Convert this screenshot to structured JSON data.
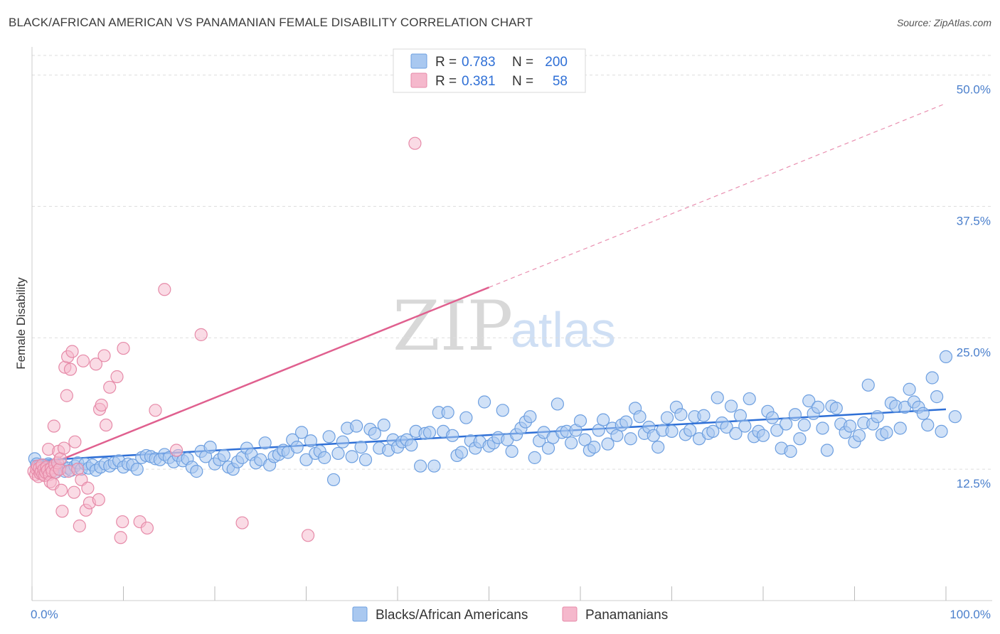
{
  "title": "BLACK/AFRICAN AMERICAN VS PANAMANIAN FEMALE DISABILITY CORRELATION CHART",
  "source": "Source: ZipAtlas.com",
  "watermark": {
    "zip": "ZIP",
    "atlas": "atlas"
  },
  "legend": {
    "r_label": "R =",
    "n_label": "N =",
    "rows": [
      {
        "r": "0.783",
        "n": "200",
        "color": "#a9c8f0"
      },
      {
        "r": "0.381",
        "n": "58",
        "color": "#f5b8cc"
      }
    ]
  },
  "colors": {
    "blue_fill": "#a9c8f0",
    "blue_stroke": "#6d9fe0",
    "blue_line": "#2e6fd6",
    "pink_fill": "#f5b8cc",
    "pink_stroke": "#e68aa8",
    "pink_line": "#e0608f"
  },
  "chart_data": {
    "type": "scatter",
    "title": "BLACK/AFRICAN AMERICAN VS PANAMANIAN FEMALE DISABILITY CORRELATION CHART",
    "xlabel": "",
    "ylabel": "Female Disability",
    "xlim": [
      0,
      100
    ],
    "ylim": [
      0,
      52
    ],
    "x_tick_labels": [
      "0.0%",
      "100.0%"
    ],
    "y_ticks": [
      12.5,
      25.0,
      37.5,
      50.0
    ],
    "y_tick_labels": [
      "12.5%",
      "25.0%",
      "37.5%",
      "50.0%"
    ],
    "grid": true,
    "legend_position": "top-center",
    "series": [
      {
        "name": "Blacks/African Americans",
        "r": 0.783,
        "n": 200,
        "trend": {
          "x": [
            0,
            100
          ],
          "y": [
            13.3,
            18.2
          ],
          "dashed_extension": false
        },
        "points": [
          [
            0.3,
            13.5
          ],
          [
            0.5,
            13.0
          ],
          [
            0.8,
            12.8
          ],
          [
            1.0,
            12.5
          ],
          [
            1.2,
            12.9
          ],
          [
            1.5,
            12.6
          ],
          [
            1.8,
            13.0
          ],
          [
            2.0,
            12.4
          ],
          [
            2.2,
            12.8
          ],
          [
            2.5,
            12.2
          ],
          [
            2.8,
            12.7
          ],
          [
            3.0,
            12.5
          ],
          [
            3.3,
            12.9
          ],
          [
            3.6,
            12.3
          ],
          [
            4.0,
            12.6
          ],
          [
            4.3,
            12.4
          ],
          [
            4.7,
            12.8
          ],
          [
            5.0,
            13.1
          ],
          [
            5.4,
            12.5
          ],
          [
            5.8,
            13.0
          ],
          [
            6.2,
            12.6
          ],
          [
            6.6,
            12.9
          ],
          [
            7.0,
            12.4
          ],
          [
            7.5,
            12.7
          ],
          [
            8.0,
            13.0
          ],
          [
            8.5,
            12.8
          ],
          [
            9.0,
            13.1
          ],
          [
            9.5,
            13.3
          ],
          [
            10.0,
            12.7
          ],
          [
            10.5,
            13.0
          ],
          [
            11.0,
            12.9
          ],
          [
            11.5,
            12.5
          ],
          [
            12.0,
            13.6
          ],
          [
            12.5,
            13.8
          ],
          [
            13.0,
            13.7
          ],
          [
            13.5,
            13.5
          ],
          [
            14.0,
            13.4
          ],
          [
            14.5,
            13.9
          ],
          [
            15.0,
            13.6
          ],
          [
            15.5,
            13.2
          ],
          [
            16.0,
            13.8
          ],
          [
            16.5,
            13.3
          ],
          [
            17.0,
            13.5
          ],
          [
            17.5,
            12.7
          ],
          [
            18.0,
            12.3
          ],
          [
            18.5,
            14.2
          ],
          [
            19.0,
            13.7
          ],
          [
            19.5,
            14.6
          ],
          [
            20.0,
            13.0
          ],
          [
            20.5,
            13.4
          ],
          [
            21.0,
            13.8
          ],
          [
            21.5,
            12.7
          ],
          [
            22.0,
            12.5
          ],
          [
            22.5,
            13.2
          ],
          [
            23.0,
            13.6
          ],
          [
            23.5,
            14.5
          ],
          [
            24.0,
            13.9
          ],
          [
            24.5,
            13.1
          ],
          [
            25.0,
            13.4
          ],
          [
            25.5,
            15.0
          ],
          [
            26.0,
            12.9
          ],
          [
            26.5,
            13.7
          ],
          [
            27.0,
            13.9
          ],
          [
            27.5,
            14.3
          ],
          [
            28.0,
            14.1
          ],
          [
            28.5,
            15.3
          ],
          [
            29.0,
            14.6
          ],
          [
            29.5,
            16.0
          ],
          [
            30.0,
            13.4
          ],
          [
            30.5,
            15.2
          ],
          [
            31.0,
            14.0
          ],
          [
            31.5,
            14.2
          ],
          [
            32.0,
            13.6
          ],
          [
            32.5,
            15.6
          ],
          [
            33.0,
            11.5
          ],
          [
            33.5,
            14.0
          ],
          [
            34.0,
            15.1
          ],
          [
            34.5,
            16.4
          ],
          [
            35.0,
            13.7
          ],
          [
            35.5,
            16.6
          ],
          [
            36.0,
            14.6
          ],
          [
            36.5,
            13.4
          ],
          [
            37.0,
            16.3
          ],
          [
            37.5,
            15.9
          ],
          [
            38.0,
            14.5
          ],
          [
            38.5,
            16.7
          ],
          [
            39.0,
            14.3
          ],
          [
            39.5,
            15.3
          ],
          [
            40.0,
            14.6
          ],
          [
            40.5,
            15.1
          ],
          [
            41.0,
            15.3
          ],
          [
            41.5,
            14.8
          ],
          [
            42.0,
            16.1
          ],
          [
            42.5,
            12.8
          ],
          [
            43.0,
            15.9
          ],
          [
            43.5,
            16.0
          ],
          [
            44.0,
            12.8
          ],
          [
            44.5,
            17.9
          ],
          [
            45.0,
            16.1
          ],
          [
            45.5,
            17.9
          ],
          [
            46.0,
            15.7
          ],
          [
            46.5,
            13.8
          ],
          [
            47.0,
            14.1
          ],
          [
            47.5,
            17.4
          ],
          [
            48.0,
            15.2
          ],
          [
            48.5,
            14.5
          ],
          [
            49.0,
            15.1
          ],
          [
            49.5,
            18.9
          ],
          [
            50.0,
            14.7
          ],
          [
            50.5,
            15.0
          ],
          [
            51.0,
            15.5
          ],
          [
            51.5,
            18.1
          ],
          [
            52.0,
            15.3
          ],
          [
            52.5,
            14.2
          ],
          [
            53.0,
            15.8
          ],
          [
            53.5,
            16.4
          ],
          [
            54.0,
            17.0
          ],
          [
            54.5,
            17.5
          ],
          [
            55.0,
            13.6
          ],
          [
            55.5,
            15.2
          ],
          [
            56.0,
            16.0
          ],
          [
            56.5,
            14.5
          ],
          [
            57.0,
            15.5
          ],
          [
            57.5,
            18.7
          ],
          [
            58.0,
            16.0
          ],
          [
            58.5,
            16.1
          ],
          [
            59.0,
            15.0
          ],
          [
            59.5,
            16.2
          ],
          [
            60.0,
            17.1
          ],
          [
            60.5,
            15.3
          ],
          [
            61.0,
            14.3
          ],
          [
            61.5,
            14.6
          ],
          [
            62.0,
            16.2
          ],
          [
            62.5,
            17.2
          ],
          [
            63.0,
            14.9
          ],
          [
            63.5,
            16.4
          ],
          [
            64.0,
            15.7
          ],
          [
            64.5,
            16.7
          ],
          [
            65.0,
            17.0
          ],
          [
            65.5,
            15.4
          ],
          [
            66.0,
            18.3
          ],
          [
            66.5,
            17.5
          ],
          [
            67.0,
            15.9
          ],
          [
            67.5,
            16.5
          ],
          [
            68.0,
            15.7
          ],
          [
            68.5,
            14.6
          ],
          [
            69.0,
            16.2
          ],
          [
            69.5,
            17.4
          ],
          [
            70.0,
            16.1
          ],
          [
            70.5,
            18.4
          ],
          [
            71.0,
            17.7
          ],
          [
            71.5,
            15.8
          ],
          [
            72.0,
            16.2
          ],
          [
            72.5,
            17.5
          ],
          [
            73.0,
            15.4
          ],
          [
            73.5,
            17.6
          ],
          [
            74.0,
            15.9
          ],
          [
            74.5,
            16.1
          ],
          [
            75.0,
            19.3
          ],
          [
            75.5,
            16.9
          ],
          [
            76.0,
            16.5
          ],
          [
            76.5,
            18.5
          ],
          [
            77.0,
            15.9
          ],
          [
            77.5,
            17.6
          ],
          [
            78.0,
            16.6
          ],
          [
            78.5,
            19.2
          ],
          [
            79.0,
            15.6
          ],
          [
            79.5,
            16.1
          ],
          [
            80.0,
            15.7
          ],
          [
            80.5,
            18.0
          ],
          [
            81.0,
            17.4
          ],
          [
            81.5,
            16.2
          ],
          [
            82.0,
            14.5
          ],
          [
            82.5,
            16.8
          ],
          [
            83.0,
            14.2
          ],
          [
            83.5,
            17.7
          ],
          [
            84.0,
            15.4
          ],
          [
            84.5,
            16.7
          ],
          [
            85.0,
            19.0
          ],
          [
            85.5,
            17.8
          ],
          [
            86.0,
            18.4
          ],
          [
            86.5,
            16.4
          ],
          [
            87.0,
            14.3
          ],
          [
            87.5,
            18.5
          ],
          [
            88.0,
            18.3
          ],
          [
            88.5,
            16.8
          ],
          [
            89.0,
            16.0
          ],
          [
            89.5,
            16.6
          ],
          [
            90.0,
            15.1
          ],
          [
            90.5,
            15.7
          ],
          [
            91.0,
            16.9
          ],
          [
            91.5,
            20.5
          ],
          [
            92.0,
            16.8
          ],
          [
            92.5,
            17.5
          ],
          [
            93.0,
            15.8
          ],
          [
            93.5,
            16.0
          ],
          [
            94.0,
            18.8
          ],
          [
            94.5,
            18.5
          ],
          [
            95.0,
            16.4
          ],
          [
            95.5,
            18.4
          ],
          [
            96.0,
            20.1
          ],
          [
            96.5,
            18.9
          ],
          [
            97.0,
            18.4
          ],
          [
            97.5,
            17.8
          ],
          [
            98.0,
            16.7
          ],
          [
            98.5,
            21.2
          ],
          [
            99.0,
            19.4
          ],
          [
            99.5,
            16.1
          ],
          [
            100.0,
            23.2
          ],
          [
            101.0,
            17.5
          ]
        ]
      },
      {
        "name": "Panamanians",
        "r": 0.381,
        "n": 58,
        "trend": {
          "x": [
            0,
            50.0
          ],
          "y": [
            12.3,
            29.8
          ],
          "dashed_extension": {
            "x": [
              50.0,
              100
            ],
            "y": [
              29.8,
              47.3
            ]
          }
        },
        "points": [
          [
            0.2,
            12.3
          ],
          [
            0.4,
            12.0
          ],
          [
            0.5,
            12.5
          ],
          [
            0.6,
            12.8
          ],
          [
            0.7,
            11.8
          ],
          [
            0.8,
            12.6
          ],
          [
            0.9,
            12.1
          ],
          [
            1.0,
            12.3
          ],
          [
            1.1,
            12.9
          ],
          [
            1.2,
            12.0
          ],
          [
            1.3,
            12.5
          ],
          [
            1.4,
            11.9
          ],
          [
            1.5,
            12.2
          ],
          [
            1.6,
            12.7
          ],
          [
            1.7,
            12.4
          ],
          [
            1.8,
            14.4
          ],
          [
            1.9,
            12.0
          ],
          [
            2.0,
            11.3
          ],
          [
            2.1,
            12.6
          ],
          [
            2.2,
            12.3
          ],
          [
            2.3,
            11.1
          ],
          [
            2.4,
            16.6
          ],
          [
            2.5,
            12.9
          ],
          [
            2.6,
            12.2
          ],
          [
            2.8,
            13.1
          ],
          [
            2.9,
            14.2
          ],
          [
            3.0,
            12.5
          ],
          [
            3.1,
            13.5
          ],
          [
            3.2,
            10.5
          ],
          [
            3.3,
            8.5
          ],
          [
            3.5,
            14.5
          ],
          [
            3.6,
            22.2
          ],
          [
            3.8,
            19.5
          ],
          [
            3.9,
            23.2
          ],
          [
            4.0,
            12.3
          ],
          [
            4.2,
            22.0
          ],
          [
            4.4,
            23.7
          ],
          [
            4.6,
            10.3
          ],
          [
            4.7,
            15.1
          ],
          [
            5.0,
            12.5
          ],
          [
            5.2,
            7.1
          ],
          [
            5.4,
            11.5
          ],
          [
            5.6,
            22.8
          ],
          [
            5.9,
            8.6
          ],
          [
            6.1,
            10.7
          ],
          [
            6.3,
            9.3
          ],
          [
            7.0,
            22.5
          ],
          [
            7.3,
            9.6
          ],
          [
            7.4,
            18.2
          ],
          [
            7.6,
            18.6
          ],
          [
            7.9,
            23.3
          ],
          [
            8.1,
            16.7
          ],
          [
            8.5,
            20.3
          ],
          [
            9.3,
            21.3
          ],
          [
            9.7,
            6.0
          ],
          [
            9.9,
            7.5
          ],
          [
            10.0,
            24.0
          ],
          [
            11.8,
            7.5
          ],
          [
            12.6,
            6.9
          ],
          [
            13.5,
            18.1
          ],
          [
            14.5,
            29.6
          ],
          [
            15.8,
            14.3
          ],
          [
            18.5,
            25.3
          ],
          [
            23.0,
            7.4
          ],
          [
            30.2,
            6.2
          ],
          [
            41.9,
            43.5
          ]
        ]
      }
    ]
  },
  "bottom_legend": [
    {
      "label": "Blacks/African Americans"
    },
    {
      "label": "Panamanians"
    }
  ]
}
